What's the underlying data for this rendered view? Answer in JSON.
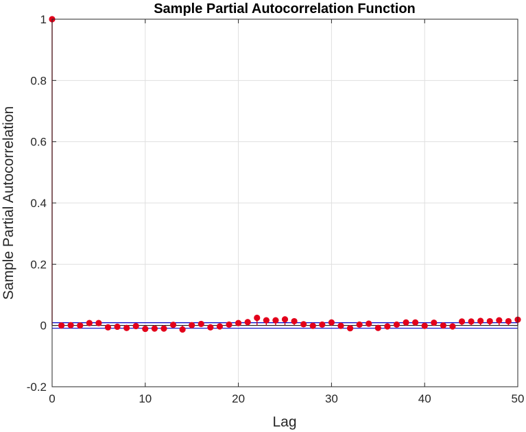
{
  "chart_data": {
    "type": "scatter",
    "title": "Sample Partial Autocorrelation Function",
    "xlabel": "Lag",
    "ylabel": "Sample Partial Autocorrelation",
    "xlim": [
      0,
      50
    ],
    "ylim": [
      -0.2,
      1
    ],
    "xticks": [
      "0",
      "10",
      "20",
      "30",
      "40",
      "50"
    ],
    "yticks": [
      "-0.2",
      "0",
      "0.2",
      "0.4",
      "0.6",
      "0.8",
      "1"
    ],
    "grid": true,
    "confidence_bounds": [
      -0.009,
      0.009
    ],
    "x": [
      0,
      1,
      2,
      3,
      4,
      5,
      6,
      7,
      8,
      9,
      10,
      11,
      12,
      13,
      14,
      15,
      16,
      17,
      18,
      19,
      20,
      21,
      22,
      23,
      24,
      25,
      26,
      27,
      28,
      29,
      30,
      31,
      32,
      33,
      34,
      35,
      36,
      37,
      38,
      39,
      40,
      41,
      42,
      43,
      44,
      45,
      46,
      47,
      48,
      49,
      50
    ],
    "values": [
      1.0,
      0.0,
      0.001,
      0.0,
      0.008,
      0.008,
      -0.006,
      -0.004,
      -0.008,
      -0.002,
      -0.011,
      -0.01,
      -0.01,
      0.002,
      -0.013,
      0.001,
      0.005,
      -0.006,
      -0.003,
      0.003,
      0.008,
      0.011,
      0.025,
      0.017,
      0.017,
      0.02,
      0.014,
      0.004,
      -0.001,
      0.003,
      0.01,
      -0.001,
      -0.009,
      0.003,
      0.006,
      -0.008,
      -0.003,
      0.003,
      0.01,
      0.01,
      -0.001,
      0.009,
      0.0,
      -0.003,
      0.013,
      0.013,
      0.015,
      0.014,
      0.017,
      0.014,
      0.019
    ],
    "colors": {
      "marker": "#e3001b",
      "stem": "#c0001a",
      "bounds": "#0000c8",
      "grid": "#dfdfdf",
      "axis": "#262626"
    }
  }
}
